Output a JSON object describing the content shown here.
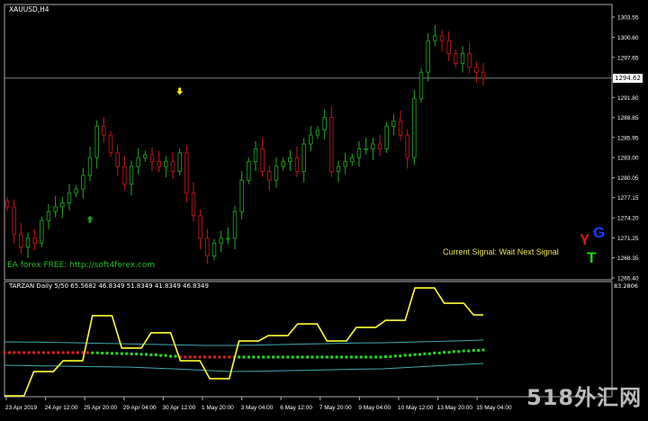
{
  "header": {
    "symbol": "XAUUSD,H4"
  },
  "overlay": {
    "ea_text": "EA forex FREE: http://soft4forex.com",
    "signal_text": "Current Signal: Wait Next Signal",
    "logo_letters": {
      "y": "Y",
      "g": "G",
      "t": "T"
    },
    "watermark": "518外汇网"
  },
  "colors": {
    "background": "#000000",
    "bull": "#1fae1f",
    "bear": "#d01818",
    "signal_up": "#22dd22",
    "signal_down": "#e02020",
    "tarzan": "#ffff33",
    "bands": "#3fa9b0",
    "arrow_up": "#1f9f1f",
    "arrow_down": "#ffee00"
  },
  "chart_data": [
    {
      "type": "candlestick",
      "title": "XAUUSD,H4",
      "ylim": [
        1265.4,
        1303.55
      ],
      "current_price": 1294.62,
      "current_price_label": "1294.62",
      "y_ticks": [
        "1303.55",
        "1300.60",
        "1297.65",
        "1291.80",
        "1288.85",
        "1285.95",
        "1283.00",
        "1280.05",
        "1277.15",
        "1274.20",
        "1271.25",
        "1268.35",
        "1265.40"
      ],
      "closes": [
        1275.8,
        1271.8,
        1269.9,
        1271.2,
        1270.5,
        1273.8,
        1275.1,
        1275.8,
        1276.4,
        1277.8,
        1278.4,
        1280.4,
        1283.0,
        1287.6,
        1286.3,
        1283.7,
        1281.7,
        1279.1,
        1281.7,
        1283.0,
        1283.4,
        1282.4,
        1281.7,
        1282.4,
        1281.0,
        1283.7,
        1277.8,
        1274.5,
        1271.2,
        1268.6,
        1270.5,
        1271.2,
        1271.2,
        1275.1,
        1279.7,
        1282.4,
        1284.3,
        1281.0,
        1279.7,
        1281.7,
        1282.4,
        1283.0,
        1281.0,
        1285.0,
        1286.3,
        1287.0,
        1288.9,
        1281.0,
        1281.7,
        1282.4,
        1283.0,
        1284.3,
        1284.3,
        1285.0,
        1284.3,
        1287.6,
        1288.3,
        1286.3,
        1283.0,
        1291.6,
        1295.5,
        1300.1,
        1300.8,
        1300.1,
        1298.2,
        1296.8,
        1298.2,
        1296.2,
        1295.5,
        1294.62
      ],
      "arrows": [
        {
          "type": "buy",
          "candle_index": 12
        },
        {
          "type": "sell",
          "candle_index": 25
        }
      ]
    },
    {
      "type": "line",
      "title": "TARZAN Daily 5/50 65.5682 46.8349 51.8349 41.8349 46.8349",
      "ymax_label": "83.2806",
      "ylim": [
        0,
        83.2806
      ],
      "x_ticks": [
        "23 Apr 2019",
        "24 Apr 12:00",
        "25 Apr 20:00",
        "29 Apr 04:00",
        "30 Apr 12:00",
        "1 May 20:00",
        "3 May 04:00",
        "6 May 12:00",
        "7 May 20:00",
        "9 May 04:00",
        "10 May 12:00",
        "13 May 20:00",
        "15 May 04:00"
      ],
      "tarzan_steps": [
        0,
        0,
        0,
        18.4,
        18.4,
        18.4,
        26.6,
        26.6,
        26.6,
        60.8,
        60.8,
        60.8,
        36.2,
        36.2,
        36.2,
        47.8,
        47.8,
        47.8,
        26.6,
        26.6,
        26.6,
        13.0,
        13.0,
        13.0,
        41.6,
        41.6,
        41.6,
        45.7,
        45.7,
        45.7,
        54.6,
        54.6,
        54.6,
        41.6,
        41.6,
        41.6,
        51.9,
        51.9,
        51.9,
        57.3,
        57.3,
        57.3,
        81.9,
        81.9,
        81.9,
        70.3,
        70.3,
        70.3,
        61.4,
        61.4
      ],
      "signal_line": [
        32.8,
        32.8,
        32.8,
        32.8,
        32.8,
        32.8,
        32.8,
        32.8,
        32.8,
        32.6,
        32.4,
        32.2,
        32.0,
        31.8,
        31.5,
        31.1,
        30.6,
        30.0,
        29.4,
        29.4,
        29.4,
        29.4,
        29.4,
        29.4,
        29.4,
        29.4,
        29.4,
        29.4,
        29.4,
        29.4,
        29.4,
        29.4,
        29.4,
        29.4,
        29.4,
        29.4,
        29.4,
        29.4,
        29.4,
        29.7,
        30.2,
        30.8,
        31.3,
        31.9,
        32.5,
        33.0,
        33.6,
        34.1,
        34.5,
        34.8
      ],
      "signal_trend": [
        "down",
        "down",
        "down",
        "down",
        "down",
        "down",
        "down",
        "down",
        "down",
        "up",
        "up",
        "up",
        "up",
        "up",
        "up",
        "up",
        "up",
        "up",
        "down",
        "down",
        "down",
        "down",
        "down",
        "down",
        "up",
        "up",
        "up",
        "up",
        "up",
        "up",
        "up",
        "up",
        "up",
        "up",
        "up",
        "up",
        "up",
        "up",
        "up",
        "up",
        "up",
        "up",
        "up",
        "up",
        "up",
        "up",
        "up",
        "up",
        "up",
        "up"
      ],
      "upper_band": [
        41.0,
        40.8,
        40.5,
        40.2,
        39.8,
        39.4,
        39.0,
        38.6,
        38.2,
        38.2,
        38.5,
        38.9,
        39.3,
        39.7,
        40.1,
        40.3,
        40.7,
        41.2,
        41.7,
        42.3
      ],
      "lower_band": [
        23.2,
        22.9,
        22.6,
        22.3,
        22.0,
        21.8,
        21.0,
        20.2,
        19.3,
        18.4,
        18.6,
        19.0,
        19.4,
        19.8,
        20.2,
        20.5,
        21.5,
        22.6,
        23.6,
        24.6
      ]
    }
  ]
}
